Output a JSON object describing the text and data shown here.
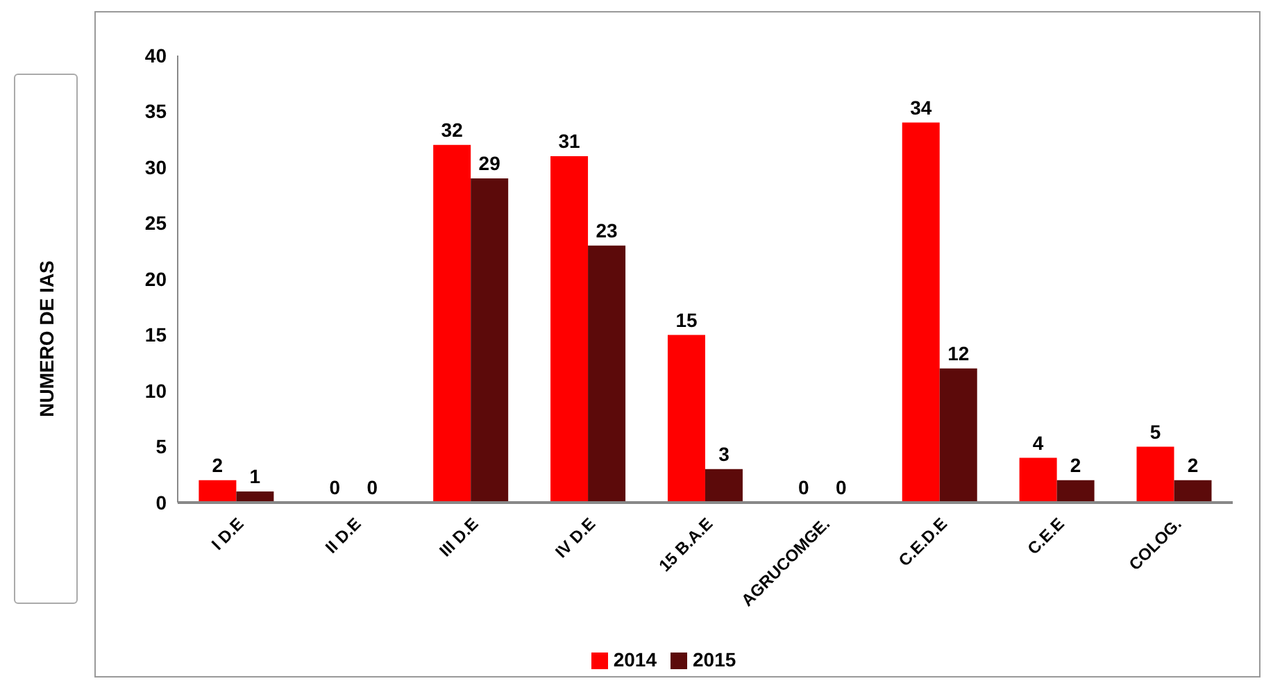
{
  "chart_data": {
    "type": "bar",
    "ylabel": "NUMERO DE IAS",
    "categories": [
      "I D.E",
      "II D.E",
      "III D.E",
      "IV D.E",
      "15 B.A.E",
      "AGRUCOMGE.",
      "C.E.D.E",
      "C.E.E",
      "COLOG."
    ],
    "series": [
      {
        "name": "2014",
        "color": "#ff0000",
        "values": [
          2,
          0,
          32,
          31,
          15,
          0,
          34,
          4,
          5
        ]
      },
      {
        "name": "2015",
        "color": "#5c0a0a",
        "values": [
          1,
          0,
          29,
          23,
          3,
          0,
          12,
          2,
          2
        ]
      }
    ],
    "ylim": [
      0,
      40
    ],
    "yticks": [
      0,
      5,
      10,
      15,
      20,
      25,
      30,
      35,
      40
    ],
    "data_labels": true,
    "legend": "bottom",
    "grid": false
  }
}
